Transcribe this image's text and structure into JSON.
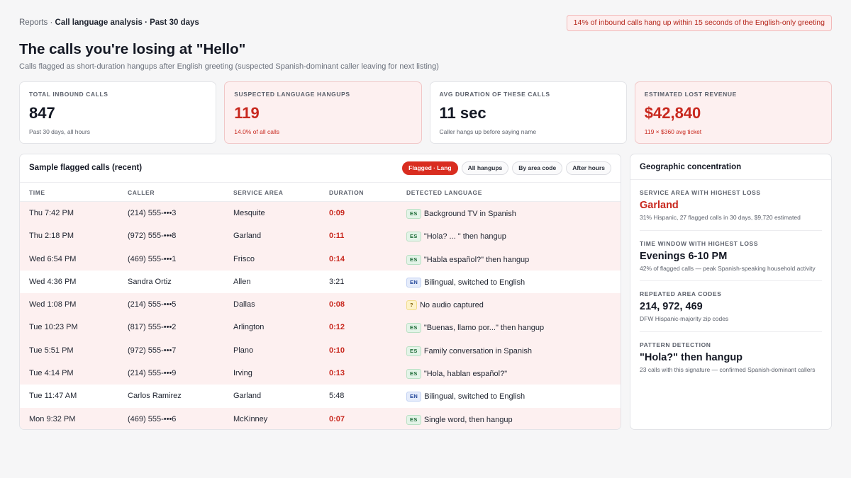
{
  "header": {
    "breadcrumb_root": "Reports",
    "breadcrumb_sep": " · ",
    "breadcrumb_page": "Call language analysis · Past 30 days",
    "alert": "14% of inbound calls hang up within 15 seconds of the English-only greeting",
    "title": "The calls you're losing at \"Hello\"",
    "subtitle": "Calls flagged as short-duration hangups after English greeting (suspected Spanish-dominant caller leaving for next listing)"
  },
  "stats": [
    {
      "label": "TOTAL INBOUND CALLS",
      "value": "847",
      "note": "Past 30 days, all hours"
    },
    {
      "label": "SUSPECTED LANGUAGE HANGUPS",
      "value": "119",
      "note": "14.0% of all calls"
    },
    {
      "label": "AVG DURATION OF THESE CALLS",
      "value": "11 sec",
      "note": "Caller hangs up before saying name"
    },
    {
      "label": "ESTIMATED LOST REVENUE",
      "value": "$42,840",
      "note": "119 × $360 avg ticket"
    }
  ],
  "table": {
    "title": "Sample flagged calls (recent)",
    "filters": [
      "Flagged · Lang",
      "All hangups",
      "By area code",
      "After hours"
    ],
    "columns": [
      "TIME",
      "CALLER",
      "SERVICE AREA",
      "DURATION",
      "DETECTED LANGUAGE"
    ],
    "rows": [
      {
        "time": "Thu 7:42 PM",
        "caller": "(214) 555-•••3",
        "area": "Mesquite",
        "duration": "0:09",
        "lang_code": "ES",
        "lang": "Background TV in Spanish"
      },
      {
        "time": "Thu 2:18 PM",
        "caller": "(972) 555-•••8",
        "area": "Garland",
        "duration": "0:11",
        "lang_code": "ES",
        "lang": "\"Hola? ... \" then hangup"
      },
      {
        "time": "Wed 6:54 PM",
        "caller": "(469) 555-•••1",
        "area": "Frisco",
        "duration": "0:14",
        "lang_code": "ES",
        "lang": "\"Habla español?\" then hangup"
      },
      {
        "time": "Wed 4:36 PM",
        "caller": "Sandra Ortiz",
        "area": "Allen",
        "duration": "3:21",
        "lang_code": "EN",
        "lang": "Bilingual, switched to English"
      },
      {
        "time": "Wed 1:08 PM",
        "caller": "(214) 555-•••5",
        "area": "Dallas",
        "duration": "0:08",
        "lang_code": "?",
        "lang": "No audio captured"
      },
      {
        "time": "Tue 10:23 PM",
        "caller": "(817) 555-•••2",
        "area": "Arlington",
        "duration": "0:12",
        "lang_code": "ES",
        "lang": "\"Buenas, llamo por...\" then hangup"
      },
      {
        "time": "Tue 5:51 PM",
        "caller": "(972) 555-•••7",
        "area": "Plano",
        "duration": "0:10",
        "lang_code": "ES",
        "lang": "Family conversation in Spanish"
      },
      {
        "time": "Tue 4:14 PM",
        "caller": "(214) 555-•••9",
        "area": "Irving",
        "duration": "0:13",
        "lang_code": "ES",
        "lang": "\"Hola, hablan español?\""
      },
      {
        "time": "Tue 11:47 AM",
        "caller": "Carlos Ramirez",
        "area": "Garland",
        "duration": "5:48",
        "lang_code": "EN",
        "lang": "Bilingual, switched to English"
      },
      {
        "time": "Mon 9:32 PM",
        "caller": "(469) 555-•••6",
        "area": "McKinney",
        "duration": "0:07",
        "lang_code": "ES",
        "lang": "Single word, then hangup"
      }
    ]
  },
  "side": {
    "title": "Geographic concentration",
    "insights": [
      {
        "label": "SERVICE AREA WITH HIGHEST LOSS",
        "value": "Garland",
        "sub": "31% Hispanic, 27 flagged calls in 30 days, $9,720 estimated"
      },
      {
        "label": "TIME WINDOW WITH HIGHEST LOSS",
        "value": "Evenings 6-10 PM",
        "sub": "42% of flagged calls — peak Spanish-speaking household activity"
      },
      {
        "label": "REPEATED AREA CODES",
        "value": "214, 972, 469",
        "sub": "DFW Hispanic-majority zip codes"
      },
      {
        "label": "PATTERN DETECTION",
        "value": "\"Hola?\" then hangup",
        "sub": "23 calls with this signature — confirmed Spanish-dominant callers"
      }
    ]
  },
  "colors": {
    "accent_red": "#d92d20",
    "flag_row_bg": "#fdf0f0",
    "es_badge": "#e3f4e8",
    "en_badge": "#e5ecfb",
    "unknown_badge": "#fdf2c9"
  }
}
